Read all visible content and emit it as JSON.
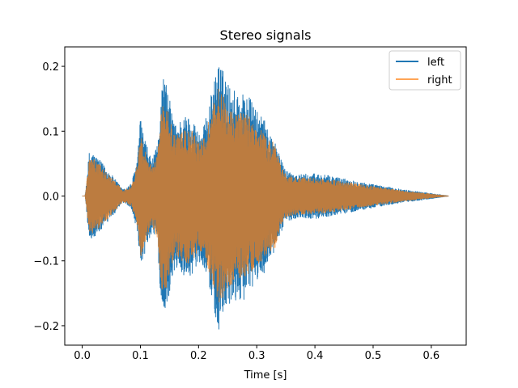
{
  "chart_data": {
    "type": "line",
    "title": "Stereo signals",
    "xlabel": "Time [s]",
    "ylabel": "",
    "xlim": [
      -0.03,
      0.66
    ],
    "ylim": [
      -0.23,
      0.23
    ],
    "xticks": [
      0.0,
      0.1,
      0.2,
      0.3,
      0.4,
      0.5,
      0.6
    ],
    "xtick_labels": [
      "0.0",
      "0.1",
      "0.2",
      "0.3",
      "0.4",
      "0.5",
      "0.6"
    ],
    "yticks": [
      -0.2,
      -0.1,
      0.0,
      0.1,
      0.2
    ],
    "ytick_labels": [
      "−0.2",
      "−0.1",
      "0.0",
      "0.1",
      "0.2"
    ],
    "grid": false,
    "legend_position": "upper right",
    "duration": 0.63,
    "series": [
      {
        "name": "left",
        "color": "#1f77b4",
        "envelope": [
          [
            0.0,
            0.0
          ],
          [
            0.005,
            0.0
          ],
          [
            0.012,
            0.068
          ],
          [
            0.02,
            0.066
          ],
          [
            0.04,
            0.045
          ],
          [
            0.06,
            0.022
          ],
          [
            0.07,
            0.01
          ],
          [
            0.075,
            0.012
          ],
          [
            0.085,
            0.02
          ],
          [
            0.095,
            0.06
          ],
          [
            0.1,
            0.12
          ],
          [
            0.11,
            0.08
          ],
          [
            0.12,
            0.055
          ],
          [
            0.13,
            0.08
          ],
          [
            0.135,
            0.16
          ],
          [
            0.14,
            0.19
          ],
          [
            0.15,
            0.15
          ],
          [
            0.16,
            0.11
          ],
          [
            0.17,
            0.12
          ],
          [
            0.18,
            0.125
          ],
          [
            0.19,
            0.12
          ],
          [
            0.2,
            0.1
          ],
          [
            0.21,
            0.11
          ],
          [
            0.22,
            0.15
          ],
          [
            0.235,
            0.21
          ],
          [
            0.25,
            0.175
          ],
          [
            0.26,
            0.165
          ],
          [
            0.27,
            0.16
          ],
          [
            0.28,
            0.16
          ],
          [
            0.29,
            0.15
          ],
          [
            0.3,
            0.13
          ],
          [
            0.31,
            0.125
          ],
          [
            0.32,
            0.1
          ],
          [
            0.33,
            0.09
          ],
          [
            0.34,
            0.06
          ],
          [
            0.35,
            0.04
          ],
          [
            0.37,
            0.033
          ],
          [
            0.4,
            0.035
          ],
          [
            0.42,
            0.032
          ],
          [
            0.45,
            0.027
          ],
          [
            0.5,
            0.018
          ],
          [
            0.55,
            0.01
          ],
          [
            0.6,
            0.004
          ],
          [
            0.63,
            0.0
          ]
        ]
      },
      {
        "name": "right",
        "color": "#ff7f0e",
        "envelope": [
          [
            0.0,
            0.0
          ],
          [
            0.005,
            0.0
          ],
          [
            0.012,
            0.058
          ],
          [
            0.02,
            0.057
          ],
          [
            0.04,
            0.04
          ],
          [
            0.06,
            0.019
          ],
          [
            0.07,
            0.009
          ],
          [
            0.075,
            0.01
          ],
          [
            0.085,
            0.017
          ],
          [
            0.095,
            0.05
          ],
          [
            0.1,
            0.1
          ],
          [
            0.11,
            0.067
          ],
          [
            0.12,
            0.046
          ],
          [
            0.13,
            0.067
          ],
          [
            0.135,
            0.135
          ],
          [
            0.14,
            0.155
          ],
          [
            0.15,
            0.125
          ],
          [
            0.16,
            0.09
          ],
          [
            0.17,
            0.1
          ],
          [
            0.18,
            0.105
          ],
          [
            0.19,
            0.1
          ],
          [
            0.2,
            0.084
          ],
          [
            0.21,
            0.09
          ],
          [
            0.22,
            0.125
          ],
          [
            0.235,
            0.17
          ],
          [
            0.25,
            0.145
          ],
          [
            0.26,
            0.135
          ],
          [
            0.27,
            0.13
          ],
          [
            0.28,
            0.13
          ],
          [
            0.29,
            0.12
          ],
          [
            0.3,
            0.105
          ],
          [
            0.31,
            0.1
          ],
          [
            0.32,
            0.085
          ],
          [
            0.33,
            0.085
          ],
          [
            0.34,
            0.05
          ],
          [
            0.35,
            0.033
          ],
          [
            0.37,
            0.028
          ],
          [
            0.4,
            0.028
          ],
          [
            0.42,
            0.026
          ],
          [
            0.45,
            0.022
          ],
          [
            0.5,
            0.015
          ],
          [
            0.55,
            0.008
          ],
          [
            0.6,
            0.003
          ],
          [
            0.63,
            0.0
          ]
        ]
      }
    ]
  }
}
